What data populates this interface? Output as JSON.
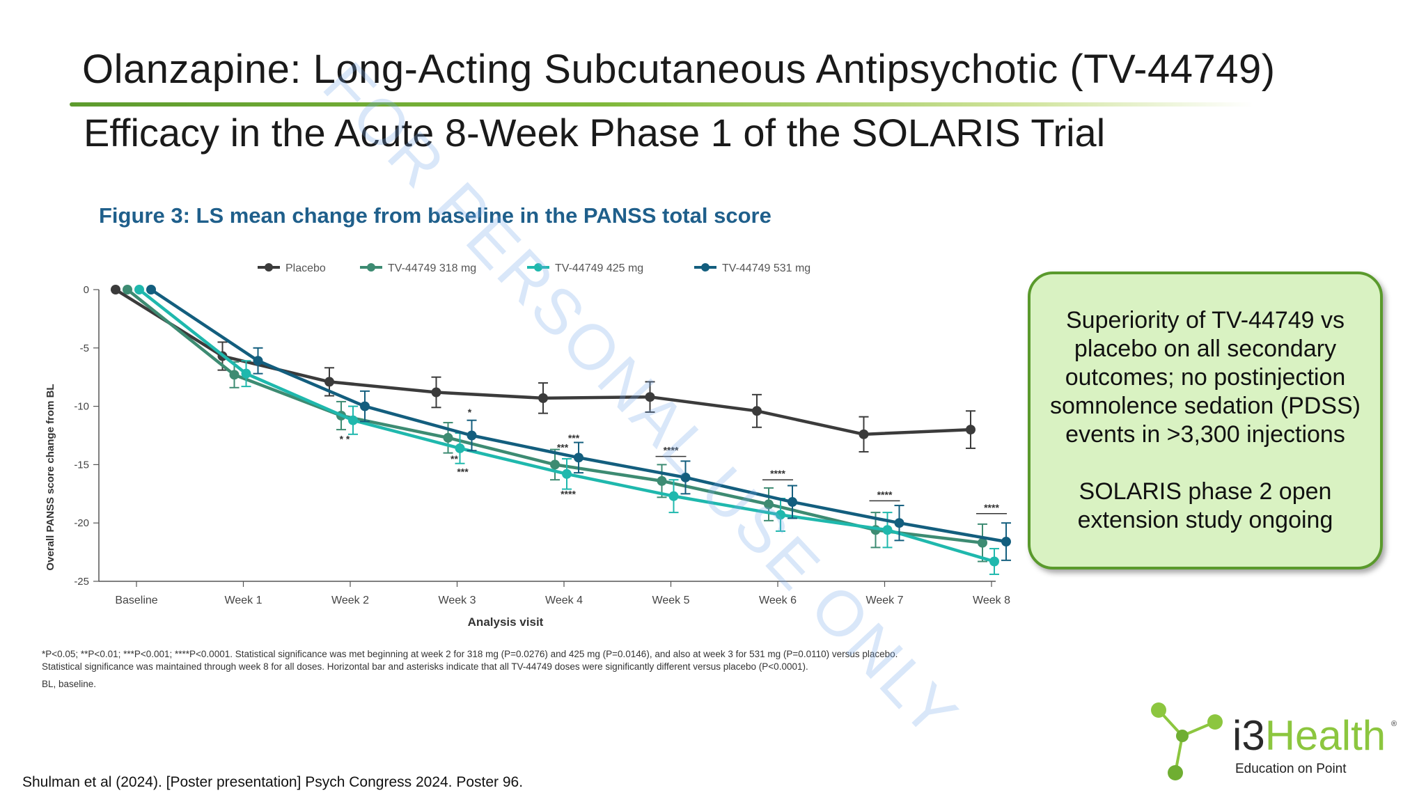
{
  "slide": {
    "title": "Olanzapine: Long-Acting Subcutaneous Antipsychotic (TV-44749)",
    "subtitle": "Efficacy in the Acute 8-Week Phase 1 of the SOLARIS Trial",
    "figure_title": "Figure 3: LS mean change from baseline in the PANSS total score",
    "watermark": "FOR PERSONAL USE ONLY",
    "footnote_line1": "*P<0.05; **P<0.01; ***P<0.001; ****P<0.0001. Statistical significance was met beginning at week 2 for 318 mg (P=0.0276) and 425 mg (P=0.0146), and also at week 3 for 531 mg (P=0.0110) versus placebo.",
    "footnote_line2": "Statistical significance was maintained through week 8 for all doses. Horizontal bar and asterisks indicate that all TV-44749 doses were significantly different versus placebo (P<0.0001).",
    "footnote_line3": "BL, baseline.",
    "citation": "Shulman et al (2024). [Poster presentation] Psych Congress 2024. Poster 96."
  },
  "callout": {
    "line1": "Superiority of TV-44749 vs placebo on all secondary outcomes; no postinjection somnolence sedation (PDSS) events in >3,300 injections",
    "line2": "SOLARIS phase 2 open extension study ongoing"
  },
  "logo": {
    "brand_prefix": "i3",
    "brand_suffix": "Health",
    "registered": "®",
    "tagline": "Education on Point",
    "colors": {
      "green": "#8cc63f",
      "dark": "#2a2a2a"
    }
  },
  "colors": {
    "title_blue": "#1f5f8b",
    "rule_green": "#5d9b2e",
    "callout_fill": "#d9f2c2",
    "callout_border": "#5a9a2c"
  },
  "chart_data": {
    "type": "line",
    "xlabel": "Analysis visit",
    "ylabel": "Overall PANSS score change from BL",
    "categories": [
      "Baseline",
      "Week 1",
      "Week 2",
      "Week 3",
      "Week 4",
      "Week 5",
      "Week 6",
      "Week 7",
      "Week 8"
    ],
    "ylim": [
      -25,
      0
    ],
    "yticks": [
      0,
      -5,
      -10,
      -15,
      -20,
      -25
    ],
    "legend_position": "top",
    "grid": false,
    "series": [
      {
        "name": "Placebo",
        "color": "#3b3b3b",
        "values": [
          0,
          -5.7,
          -7.9,
          -8.8,
          -9.3,
          -9.2,
          -10.4,
          -12.4,
          -12.0
        ],
        "error": [
          0,
          1.2,
          1.2,
          1.3,
          1.3,
          1.3,
          1.4,
          1.5,
          1.6
        ]
      },
      {
        "name": "TV-44749 318 mg",
        "color": "#3d8b72",
        "values": [
          0,
          -7.3,
          -10.8,
          -12.7,
          -15.0,
          -16.4,
          -18.4,
          -20.6,
          -21.7
        ],
        "error": [
          0,
          1.1,
          1.2,
          1.3,
          1.3,
          1.4,
          1.4,
          1.5,
          1.6
        ]
      },
      {
        "name": "TV-44749 425 mg",
        "color": "#1fb8ad",
        "values": [
          0,
          -7.2,
          -11.2,
          -13.6,
          -15.8,
          -17.7,
          -19.3,
          -20.6,
          -23.3
        ],
        "error": [
          0,
          1.1,
          1.2,
          1.3,
          1.3,
          1.4,
          1.4,
          1.5,
          1.1
        ]
      },
      {
        "name": "TV-44749 531 mg",
        "color": "#135e7e",
        "values": [
          0,
          -6.1,
          -10.0,
          -12.5,
          -14.4,
          -16.1,
          -18.2,
          -20.0,
          -21.6
        ],
        "error": [
          0,
          1.1,
          1.3,
          1.3,
          1.3,
          1.4,
          1.4,
          1.5,
          1.6
        ]
      }
    ],
    "annotations": [
      {
        "week": "Week 2",
        "labels": [
          "* *"
        ]
      },
      {
        "week": "Week 3",
        "labels": [
          "*",
          "**",
          "***"
        ]
      },
      {
        "week": "Week 4",
        "labels": [
          "***",
          "***",
          "****"
        ]
      },
      {
        "week": "Week 5",
        "labels": [
          "****"
        ]
      },
      {
        "week": "Week 6",
        "labels": [
          "****"
        ]
      },
      {
        "week": "Week 7",
        "labels": [
          "****"
        ]
      },
      {
        "week": "Week 8",
        "labels": [
          "****"
        ]
      }
    ]
  }
}
